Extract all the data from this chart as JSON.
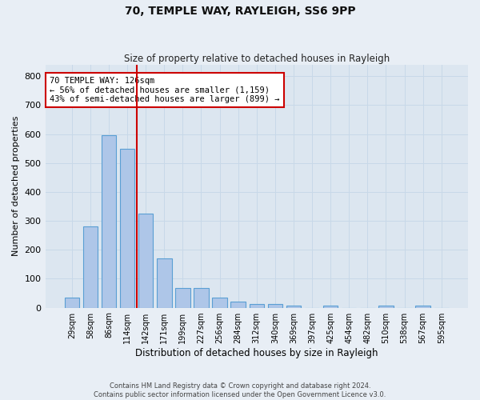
{
  "title1": "70, TEMPLE WAY, RAYLEIGH, SS6 9PP",
  "title2": "Size of property relative to detached houses in Rayleigh",
  "xlabel": "Distribution of detached houses by size in Rayleigh",
  "ylabel": "Number of detached properties",
  "categories": [
    "29sqm",
    "58sqm",
    "86sqm",
    "114sqm",
    "142sqm",
    "171sqm",
    "199sqm",
    "227sqm",
    "256sqm",
    "284sqm",
    "312sqm",
    "340sqm",
    "369sqm",
    "397sqm",
    "425sqm",
    "454sqm",
    "482sqm",
    "510sqm",
    "538sqm",
    "567sqm",
    "595sqm"
  ],
  "values": [
    35,
    280,
    595,
    550,
    325,
    170,
    68,
    68,
    35,
    20,
    12,
    12,
    8,
    0,
    8,
    0,
    0,
    8,
    0,
    8,
    0
  ],
  "bar_color": "#aec6e8",
  "bar_edge_color": "#5a9fd4",
  "grid_color": "#c8d8e8",
  "bg_color": "#e8eef5",
  "plot_bg_color": "#dce6f0",
  "red_line_x": 3.5,
  "annotation_text": "70 TEMPLE WAY: 126sqm\n← 56% of detached houses are smaller (1,159)\n43% of semi-detached houses are larger (899) →",
  "annotation_box_color": "#ffffff",
  "annotation_box_edge": "#cc0000",
  "ylim": [
    0,
    840
  ],
  "yticks": [
    0,
    100,
    200,
    300,
    400,
    500,
    600,
    700,
    800
  ],
  "footer1": "Contains HM Land Registry data © Crown copyright and database right 2024.",
  "footer2": "Contains public sector information licensed under the Open Government Licence v3.0."
}
